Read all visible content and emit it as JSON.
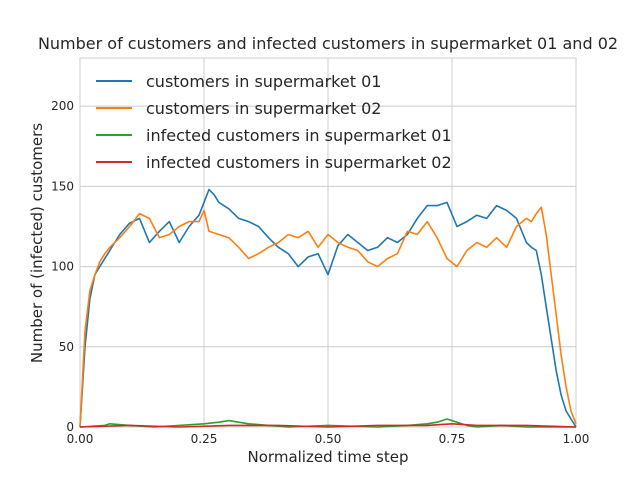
{
  "chart_data": {
    "type": "line",
    "title": "Number of customers and infected customers in supermarket 01 and 02",
    "xlabel": "Normalized time step",
    "ylabel": "Number of (infected) customers",
    "xlim": [
      0,
      1
    ],
    "ylim": [
      0,
      230
    ],
    "xticks": [
      "0.00",
      "0.25",
      "0.50",
      "0.75",
      "1.00"
    ],
    "xtick_values": [
      0,
      0.25,
      0.5,
      0.75,
      1.0
    ],
    "yticks": [
      "0",
      "50",
      "100",
      "150",
      "200"
    ],
    "ytick_values": [
      0,
      50,
      100,
      150,
      200
    ],
    "grid": true,
    "legend_position": "top-left",
    "series": [
      {
        "name": "customers in supermarket 01",
        "color": "#1f77b4",
        "x": [
          0,
          0.01,
          0.02,
          0.03,
          0.04,
          0.05,
          0.06,
          0.08,
          0.1,
          0.12,
          0.14,
          0.16,
          0.18,
          0.2,
          0.22,
          0.24,
          0.25,
          0.26,
          0.27,
          0.28,
          0.3,
          0.32,
          0.34,
          0.36,
          0.38,
          0.4,
          0.42,
          0.44,
          0.46,
          0.48,
          0.5,
          0.52,
          0.54,
          0.56,
          0.58,
          0.6,
          0.62,
          0.64,
          0.66,
          0.68,
          0.7,
          0.72,
          0.74,
          0.76,
          0.78,
          0.8,
          0.82,
          0.84,
          0.86,
          0.88,
          0.9,
          0.91,
          0.92,
          0.93,
          0.94,
          0.95,
          0.96,
          0.97,
          0.98,
          0.99,
          1.0
        ],
        "y": [
          0,
          50,
          80,
          95,
          100,
          105,
          110,
          120,
          127,
          130,
          115,
          122,
          128,
          115,
          125,
          132,
          140,
          148,
          145,
          140,
          136,
          130,
          128,
          125,
          118,
          112,
          108,
          100,
          106,
          108,
          95,
          113,
          120,
          115,
          110,
          112,
          118,
          115,
          120,
          130,
          138,
          138,
          140,
          125,
          128,
          132,
          130,
          138,
          135,
          130,
          115,
          112,
          110,
          95,
          75,
          55,
          35,
          20,
          10,
          5,
          0
        ]
      },
      {
        "name": "customers in supermarket 02",
        "color": "#ff7f0e",
        "x": [
          0,
          0.01,
          0.02,
          0.03,
          0.04,
          0.05,
          0.06,
          0.08,
          0.1,
          0.12,
          0.14,
          0.16,
          0.18,
          0.2,
          0.22,
          0.24,
          0.25,
          0.26,
          0.28,
          0.3,
          0.32,
          0.34,
          0.36,
          0.38,
          0.4,
          0.42,
          0.44,
          0.46,
          0.48,
          0.5,
          0.52,
          0.54,
          0.56,
          0.58,
          0.6,
          0.62,
          0.64,
          0.66,
          0.68,
          0.7,
          0.72,
          0.74,
          0.76,
          0.78,
          0.8,
          0.82,
          0.84,
          0.86,
          0.88,
          0.9,
          0.91,
          0.92,
          0.93,
          0.94,
          0.95,
          0.96,
          0.97,
          0.98,
          0.99,
          1.0
        ],
        "y": [
          0,
          60,
          85,
          95,
          103,
          108,
          112,
          118,
          125,
          133,
          130,
          118,
          120,
          125,
          128,
          128,
          135,
          122,
          120,
          118,
          112,
          105,
          108,
          112,
          115,
          120,
          118,
          122,
          112,
          120,
          115,
          112,
          110,
          103,
          100,
          105,
          108,
          122,
          120,
          128,
          118,
          105,
          100,
          110,
          115,
          112,
          118,
          112,
          125,
          130,
          128,
          133,
          137,
          120,
          95,
          70,
          45,
          25,
          10,
          2
        ]
      },
      {
        "name": "infected customers in supermarket 01",
        "color": "#2ca02c",
        "x": [
          0,
          0.05,
          0.06,
          0.1,
          0.15,
          0.2,
          0.25,
          0.28,
          0.3,
          0.32,
          0.34,
          0.38,
          0.42,
          0.5,
          0.6,
          0.66,
          0.7,
          0.72,
          0.74,
          0.76,
          0.78,
          0.8,
          0.85,
          0.9,
          1.0
        ],
        "y": [
          0,
          1,
          2,
          1,
          0,
          1,
          2,
          3,
          4,
          3,
          2,
          1,
          0,
          1,
          0,
          1,
          2,
          3,
          5,
          3,
          1,
          0,
          1,
          0,
          0
        ]
      },
      {
        "name": "infected customers in supermarket 02",
        "color": "#d62728",
        "x": [
          0,
          0.1,
          0.2,
          0.3,
          0.4,
          0.5,
          0.6,
          0.7,
          0.75,
          0.8,
          0.9,
          1.0
        ],
        "y": [
          0,
          1,
          0,
          1,
          1,
          0,
          1,
          1,
          2,
          1,
          1,
          0
        ]
      }
    ]
  }
}
